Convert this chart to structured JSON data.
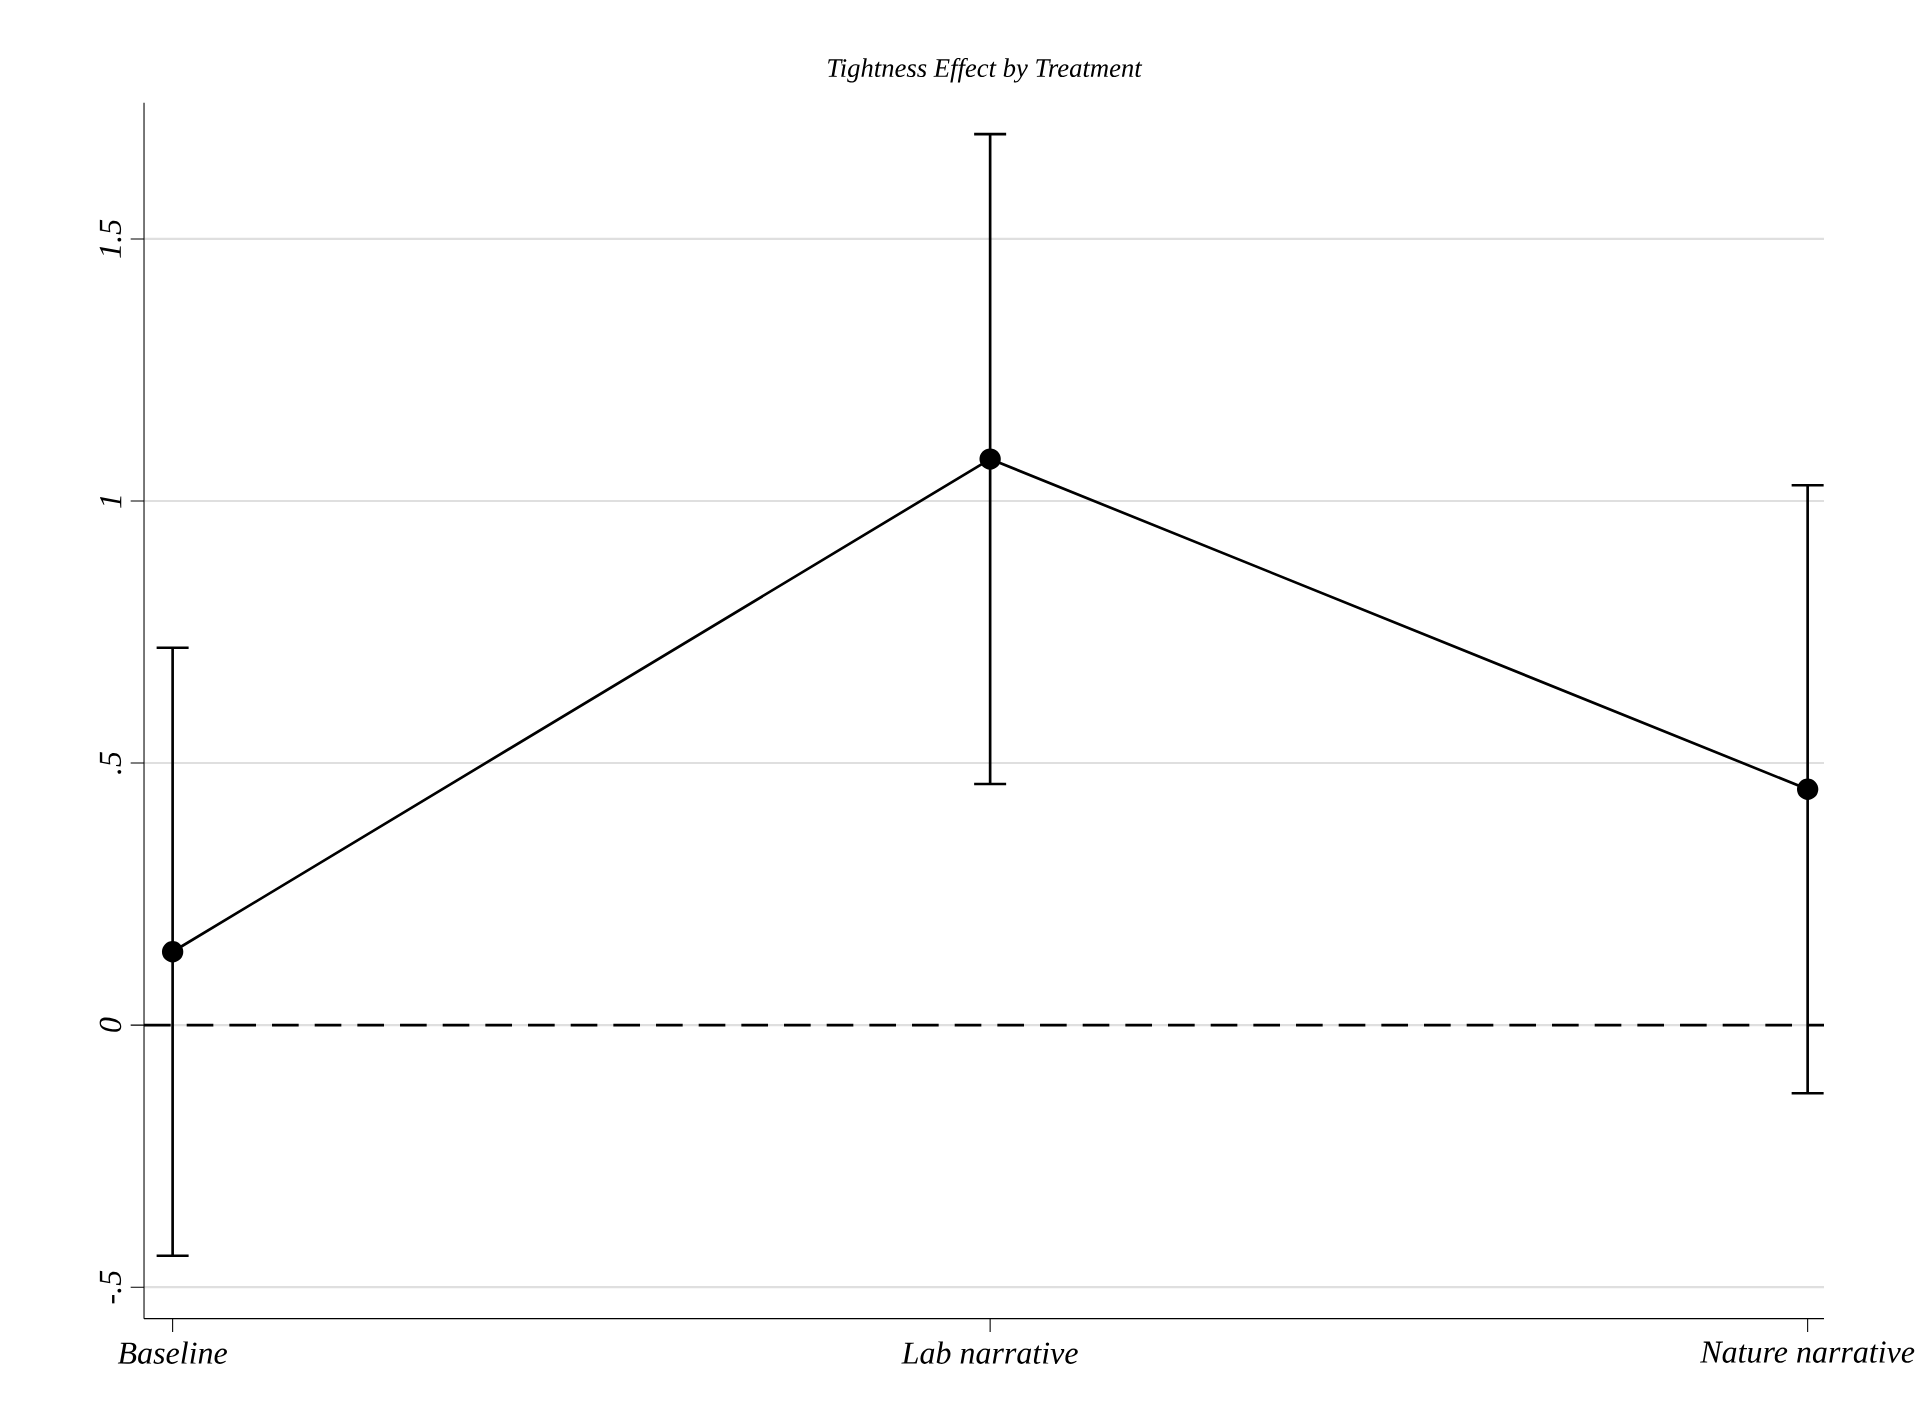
{
  "chart_data": {
    "type": "line",
    "title": "Tightness Effect by Treatment",
    "categories": [
      "Baseline",
      "Lab narrative",
      "Nature narrative"
    ],
    "series": [
      {
        "color": "#000000",
        "values": [
          0.14,
          1.08,
          0.45
        ],
        "errors": [
          [
            -0.44,
            0.72
          ],
          [
            0.46,
            1.7
          ],
          [
            -0.13,
            1.03
          ]
        ]
      }
    ],
    "ylim": [
      -0.56,
      1.76
    ],
    "yticks": [
      {
        "value": -0.5,
        "label": "-.5"
      },
      0,
      {
        "value": 0.5,
        "label": ".5"
      },
      1,
      {
        "value": 1.5,
        "label": "1.5"
      }
    ],
    "grid": "y",
    "marker": "circle",
    "line_style": "solid",
    "ref_lines": [
      {
        "axis": "y",
        "value": 0,
        "color": "#000000",
        "line_style": "dashed"
      }
    ]
  }
}
